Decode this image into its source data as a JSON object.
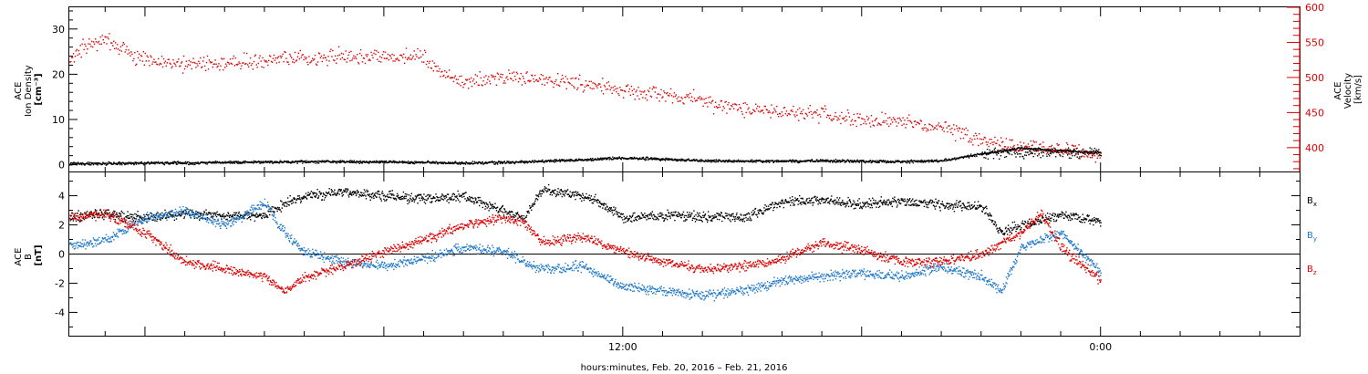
{
  "chart_data": [
    {
      "type": "scatter",
      "panel": "top",
      "x_axis": {
        "unit": "hours since 00:00 Feb. 20, 2016",
        "range": [
          -1.9,
          29
        ]
      },
      "y_left": {
        "label_lines": [
          "ACE",
          "Ion Density",
          "[cm⁻³]"
        ],
        "range": [
          -1.5,
          34.8
        ],
        "ticks": [
          0,
          10,
          20,
          30
        ]
      },
      "y_right": {
        "label_lines": [
          "ACE",
          "Velocity",
          "[km/s]"
        ],
        "range": [
          366,
          600
        ],
        "ticks": [
          400,
          450,
          500,
          550,
          600
        ]
      },
      "series": [
        {
          "axis": "left",
          "color": "#000000",
          "x": [
            -1.9,
            -1,
            0,
            1,
            2,
            3,
            4,
            5,
            6,
            7,
            8,
            9,
            10,
            11,
            12,
            13,
            14,
            15,
            16,
            17,
            18,
            19,
            20,
            21,
            22,
            22.5,
            23,
            23.5,
            24
          ],
          "y": [
            0.3,
            0.4,
            0.5,
            0.5,
            0.6,
            0.7,
            0.8,
            0.8,
            0.7,
            0.6,
            0.5,
            0.6,
            0.9,
            1.2,
            1.6,
            1.4,
            1.0,
            0.9,
            0.9,
            1.0,
            0.9,
            0.8,
            1.0,
            2.5,
            3.8,
            3.5,
            3.2,
            3.0,
            2.8
          ]
        },
        {
          "axis": "right",
          "color": "#dd0000",
          "x": [
            -1.9,
            -1.5,
            -1,
            -0.5,
            0,
            1,
            2,
            3,
            4,
            5,
            6,
            7,
            7.5,
            8,
            9,
            10,
            11,
            12,
            13,
            14,
            15,
            16,
            17,
            18,
            19,
            20,
            21,
            22,
            22.5,
            23,
            24
          ],
          "y": [
            525,
            545,
            555,
            540,
            525,
            520,
            522,
            525,
            528,
            530,
            532,
            530,
            505,
            495,
            500,
            497,
            492,
            482,
            475,
            468,
            455,
            452,
            448,
            440,
            438,
            430,
            410,
            402,
            400,
            397,
            388
          ]
        }
      ]
    },
    {
      "type": "scatter",
      "panel": "bottom",
      "x_axis": {
        "range": [
          -1.9,
          29
        ],
        "tick_labels": [
          {
            "x": 12,
            "label": "12:00"
          },
          {
            "x": 24,
            "label": "0:00"
          }
        ],
        "xlabel": "hours:minutes, Feb. 20, 2016 – Feb. 21, 2016"
      },
      "y_axis": {
        "label_lines": [
          "ACE",
          "B",
          "[nT]"
        ],
        "range": [
          -5.6,
          5.6
        ],
        "ticks": [
          -4,
          -2,
          0,
          2,
          4
        ]
      },
      "series": [
        {
          "name": "Bx",
          "color": "#000000",
          "x": [
            -1.9,
            -1,
            0,
            1,
            2,
            3,
            3.5,
            4,
            5,
            6,
            7,
            8,
            9,
            9.5,
            10,
            10.5,
            11,
            11.5,
            12,
            13,
            14,
            15,
            16,
            17,
            18,
            19,
            20,
            21,
            21.5,
            22,
            23,
            24
          ],
          "y": [
            2.6,
            2.8,
            2.5,
            2.8,
            2.7,
            2.7,
            3.5,
            4.0,
            4.3,
            4.0,
            3.8,
            4.0,
            3.0,
            2.5,
            4.5,
            4.2,
            4.0,
            3.5,
            2.5,
            2.7,
            2.6,
            2.5,
            3.6,
            3.7,
            3.4,
            3.7,
            3.4,
            3.3,
            1.5,
            2.0,
            2.7,
            2.3
          ]
        },
        {
          "name": "By",
          "color": "#1f78c8",
          "x": [
            -1.9,
            -1,
            0,
            1,
            2,
            3,
            3.5,
            4,
            5,
            6,
            7,
            8,
            9,
            9.5,
            10,
            11,
            12,
            13,
            14,
            15,
            16,
            17,
            18,
            19,
            20,
            21,
            21.5,
            22,
            23,
            24
          ],
          "y": [
            0.6,
            1.0,
            2.5,
            3.0,
            2.0,
            3.5,
            1.5,
            0.2,
            -0.5,
            -0.8,
            -0.3,
            0.5,
            0.2,
            -0.5,
            -1.0,
            -0.8,
            -2.2,
            -2.5,
            -2.8,
            -2.5,
            -1.8,
            -1.5,
            -1.3,
            -1.5,
            -0.8,
            -1.5,
            -2.5,
            0.5,
            1.5,
            -1.2
          ]
        },
        {
          "name": "Bz",
          "color": "#dd0000",
          "x": [
            -1.9,
            -1,
            0,
            0.5,
            1,
            2,
            3,
            3.5,
            4,
            5,
            6,
            7,
            8,
            9,
            9.5,
            10,
            11,
            12,
            13,
            14,
            15,
            16,
            17,
            18,
            19,
            20,
            21,
            22,
            22.5,
            23,
            24
          ],
          "y": [
            2.5,
            2.8,
            1.5,
            0.5,
            -0.5,
            -1.0,
            -1.5,
            -2.5,
            -1.6,
            -0.8,
            0.2,
            1.0,
            2.0,
            2.5,
            2.3,
            0.8,
            1.2,
            0.2,
            -0.5,
            -1.0,
            -0.8,
            -0.3,
            0.8,
            0.3,
            -0.5,
            -0.5,
            0.0,
            1.5,
            2.8,
            0.5,
            -1.8
          ]
        }
      ]
    }
  ],
  "legend": {
    "items": [
      {
        "base": "B",
        "sub": "x",
        "color": "#000000"
      },
      {
        "base": "B",
        "sub": "y",
        "color": "#1f78c8"
      },
      {
        "base": "B",
        "sub": "z",
        "color": "#dd0000"
      }
    ]
  }
}
